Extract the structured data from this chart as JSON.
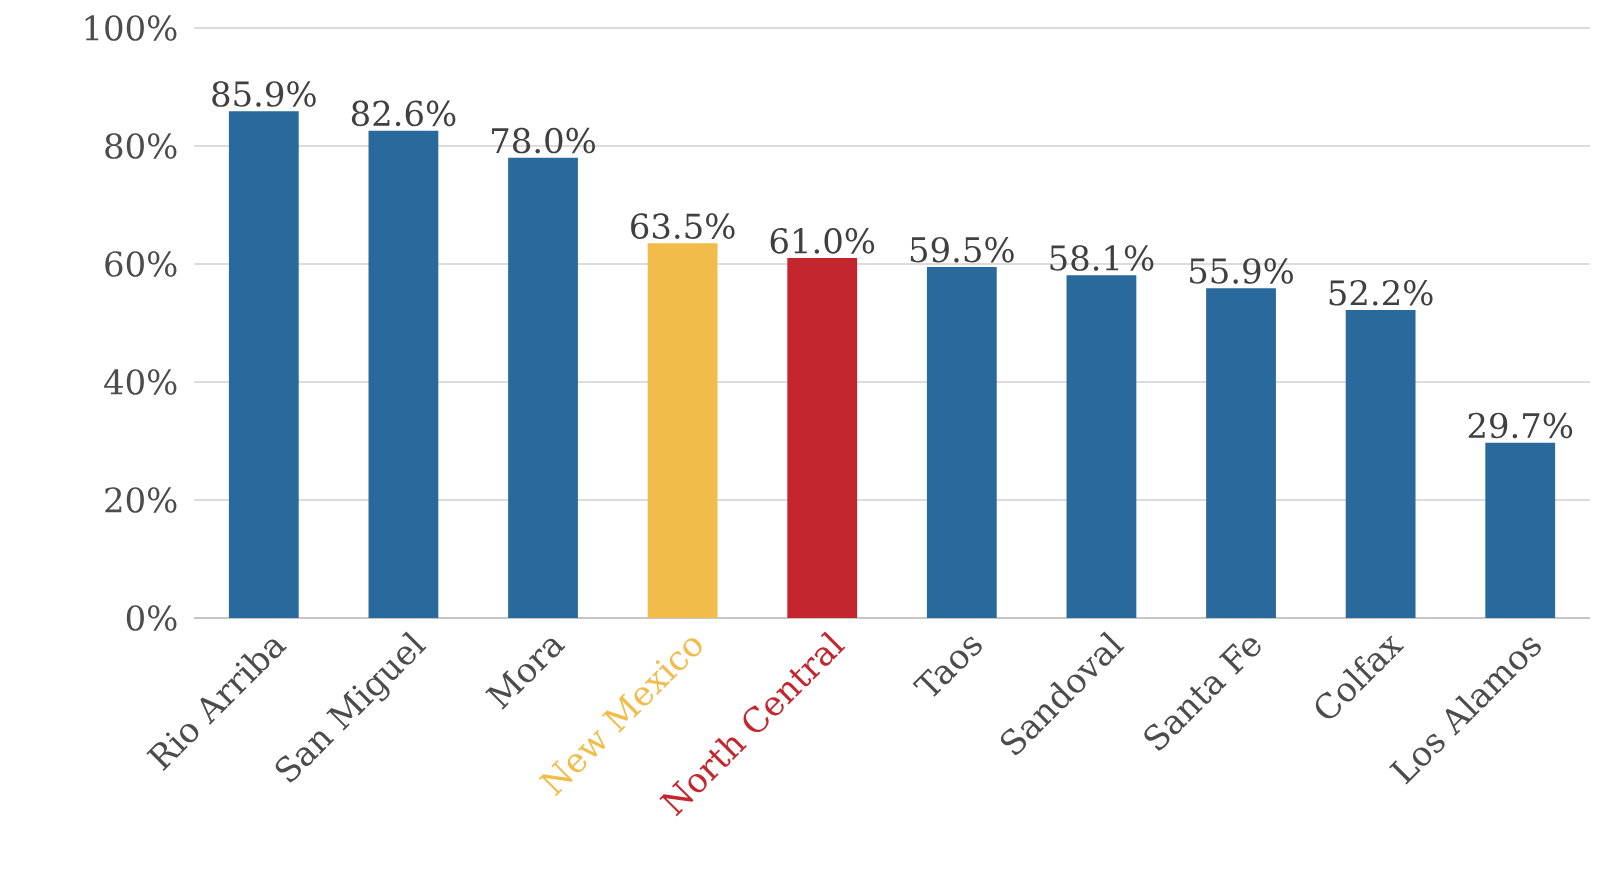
{
  "chart_data": {
    "type": "bar",
    "categories": [
      "Rio Arriba",
      "San Miguel",
      "Mora",
      "New Mexico",
      "North Central",
      "Taos",
      "Sandoval",
      "Santa Fe",
      "Colfax",
      "Los Alamos"
    ],
    "values": [
      85.9,
      82.6,
      78.0,
      63.5,
      61.0,
      59.5,
      58.1,
      55.9,
      52.2,
      29.7
    ],
    "value_labels": [
      "85.9%",
      "82.6%",
      "78.0%",
      "63.5%",
      "61.0%",
      "59.5%",
      "58.1%",
      "55.9%",
      "52.2%",
      "29.7%"
    ],
    "colors": [
      "#2a699c",
      "#2a699c",
      "#2a699c",
      "#f2bc4a",
      "#c4262e",
      "#2a699c",
      "#2a699c",
      "#2a699c",
      "#2a699c",
      "#2a699c"
    ],
    "ylim": [
      0,
      100
    ],
    "yticks": [
      {
        "value": 0,
        "label": "0%"
      },
      {
        "value": 20,
        "label": "20%"
      },
      {
        "value": 40,
        "label": "40%"
      },
      {
        "value": 60,
        "label": "60%"
      },
      {
        "value": 80,
        "label": "80%"
      },
      {
        "value": 100,
        "label": "100%"
      }
    ],
    "grid": "y"
  }
}
